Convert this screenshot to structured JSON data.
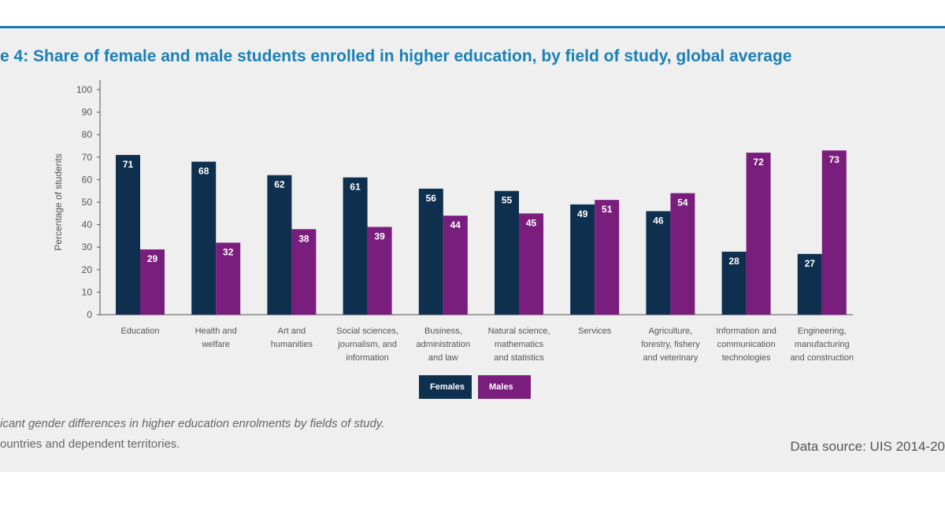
{
  "title": "e 4: Share of female and male students enrolled in higher education, by field of study, global average",
  "notes": {
    "line1": "icant gender differences in higher education enrolments by fields of study.",
    "line2": "ountries and dependent territories."
  },
  "source": "Data source: UIS 2014-20",
  "colors": {
    "females": "#0f2f4f",
    "males": "#7a1e7e",
    "title": "#1a80b8",
    "rule": "#1a78b4"
  },
  "chart_data": {
    "type": "bar",
    "ylabel": "Percentage of students",
    "ylim": [
      0,
      100
    ],
    "yticks": [
      0,
      10,
      20,
      30,
      40,
      50,
      60,
      70,
      80,
      90,
      100
    ],
    "categories": [
      [
        "Education"
      ],
      [
        "Health and",
        "welfare"
      ],
      [
        "Art and",
        "humanities"
      ],
      [
        "Social sciences,",
        "journalism, and",
        "information"
      ],
      [
        "Business,",
        "administration",
        "and law"
      ],
      [
        "Natural science,",
        "mathematics",
        "and statistics"
      ],
      [
        "Services"
      ],
      [
        "Agriculture,",
        "forestry, fishery",
        "and veterinary"
      ],
      [
        "Information and",
        "communication",
        "technologies"
      ],
      [
        "Engineering,",
        "manufacturing",
        "and construction"
      ]
    ],
    "series": [
      {
        "name": "Females",
        "values": [
          71,
          68,
          62,
          61,
          56,
          55,
          49,
          46,
          28,
          27
        ]
      },
      {
        "name": "Males",
        "values": [
          29,
          32,
          38,
          39,
          44,
          45,
          51,
          54,
          72,
          73
        ]
      }
    ],
    "legend": [
      "Females",
      "Males"
    ],
    "legend_position": "bottom-center"
  }
}
